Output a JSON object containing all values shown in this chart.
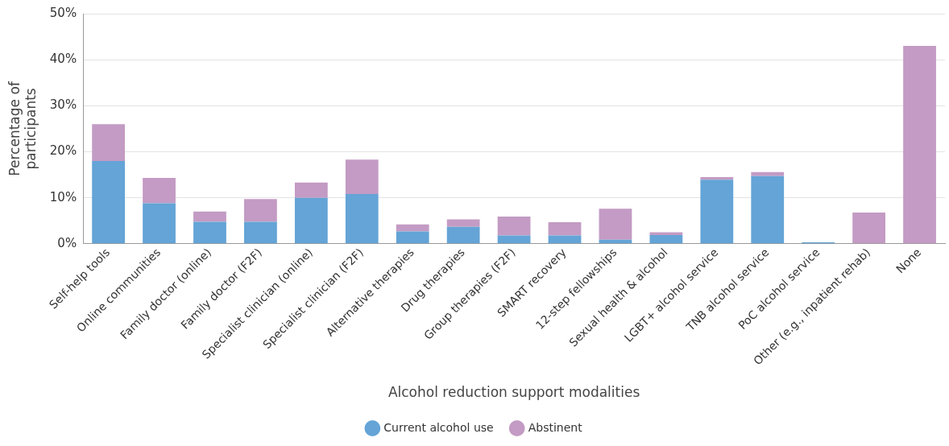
{
  "chart_data": {
    "type": "bar",
    "stacked": true,
    "xlabel": "Alcohol reduction support modalities",
    "ylabel": "Percentage of participants",
    "categories": [
      "Self-help tools",
      "Online communities",
      "Family doctor (online)",
      "Family doctor (F2F)",
      "Specialist clinician (online)",
      "Specialist clinician (F2F)",
      "Alternative therapies",
      "Drug therapies",
      "Group therapies (F2F)",
      "SMART recovery",
      "12-step fellowships",
      "Sexual health & alcohol",
      "LGBT+ alcohol service",
      "TNB alcohol service",
      "PoC alcohol service",
      "Other (e.g., inpatient rehab)",
      "None"
    ],
    "series": [
      {
        "name": "Current alcohol use",
        "color": "#64a4d6",
        "values": [
          18,
          8.8,
          4.8,
          4.8,
          10,
          10.8,
          2.7,
          3.7,
          1.8,
          1.8,
          0.9,
          1.9,
          13.9,
          14.7,
          0.3,
          0,
          0
        ]
      },
      {
        "name": "Abstinent",
        "color": "#c39bc4",
        "values": [
          8,
          5.5,
          2.2,
          4.9,
          3.3,
          7.5,
          1.5,
          1.6,
          4.1,
          2.9,
          6.7,
          0.6,
          0.6,
          0.9,
          0,
          6.8,
          43
        ]
      }
    ],
    "ylim": [
      0,
      50
    ],
    "yticks": [
      {
        "value": 0,
        "label": "0%"
      },
      {
        "value": 10,
        "label": "10%"
      },
      {
        "value": 20,
        "label": "20%"
      },
      {
        "value": 30,
        "label": "30%"
      },
      {
        "value": 40,
        "label": "40%"
      },
      {
        "value": 50,
        "label": "50%"
      }
    ],
    "grid": "y",
    "legend": "bottom"
  }
}
